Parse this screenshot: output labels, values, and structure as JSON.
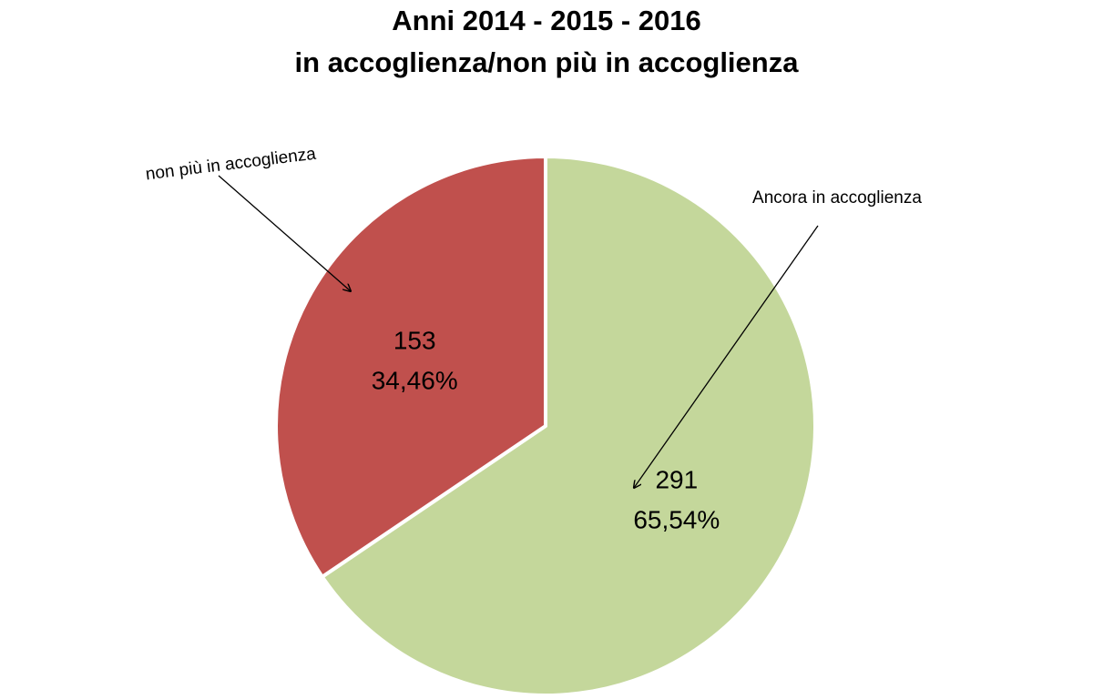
{
  "chart_data": {
    "type": "pie",
    "title": [
      "Anni 2014 - 2015 - 2016",
      "in accoglienza/non più in accoglienza"
    ],
    "start_angle_deg": 0,
    "direction": "clockwise",
    "slices": [
      {
        "label": "Ancora in accoglienza",
        "value": 291,
        "percent_label": "65,54%",
        "color": "#c4d79b"
      },
      {
        "label": "non più in accoglienza",
        "value": 153,
        "percent_label": "34,46%",
        "color": "#c0504d"
      }
    ],
    "slice_border_color": "#ffffff"
  }
}
